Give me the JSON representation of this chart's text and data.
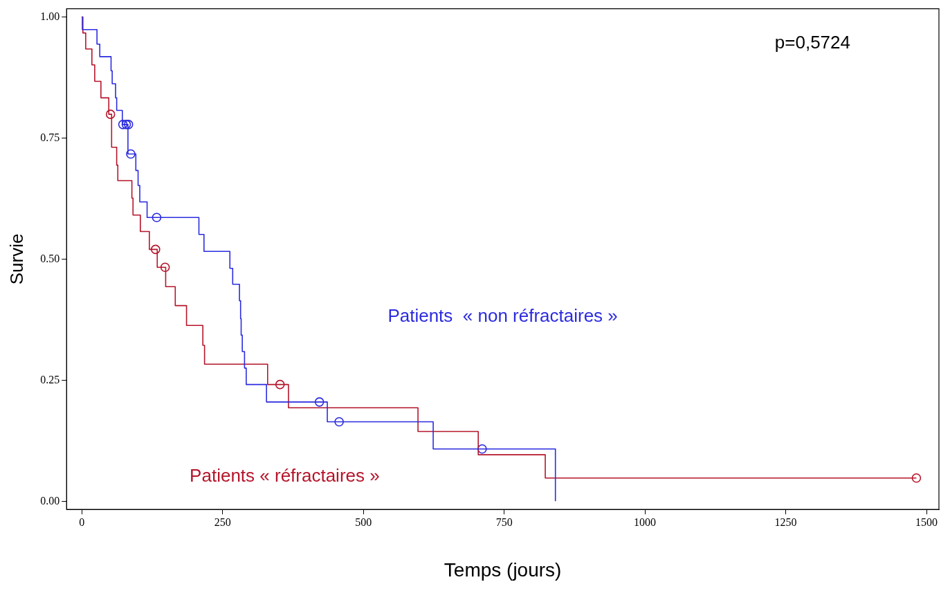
{
  "chart_data": {
    "type": "step",
    "xlabel": "Temps (jours)",
    "ylabel": "Survie",
    "annotations": [
      "p=0,5724"
    ],
    "xlim": [
      -27,
      1522
    ],
    "ylim": [
      -0.017,
      1.017
    ],
    "xticks": [
      0,
      250,
      500,
      750,
      1000,
      1250,
      1500
    ],
    "yticks": [
      {
        "value": 0,
        "label": "0.00"
      },
      {
        "value": 0.25,
        "label": "0.25"
      },
      {
        "value": 0.5,
        "label": "0.50"
      },
      {
        "value": 0.75,
        "label": "0.75"
      },
      {
        "value": 1,
        "label": "1.00"
      }
    ],
    "grid": false,
    "legend": false,
    "marker": "none",
    "line_style": "solid",
    "series": [
      {
        "name": "Patients  « non réfractaires »",
        "color": "#2b2bdf",
        "x": [
          0,
          1,
          27,
          32,
          52,
          54,
          60,
          62,
          72,
          82,
          96,
          100,
          103,
          116,
          208,
          217,
          263,
          268,
          280,
          282,
          283,
          285,
          289,
          292,
          328,
          436,
          624,
          841
        ],
        "values": [
          1,
          0.974,
          0.944,
          0.918,
          0.889,
          0.862,
          0.833,
          0.807,
          0.778,
          0.717,
          0.683,
          0.652,
          0.618,
          0.586,
          0.551,
          0.516,
          0.481,
          0.448,
          0.414,
          0.377,
          0.343,
          0.309,
          0.275,
          0.241,
          0.205,
          0.164,
          0.108,
          0
        ]
      },
      {
        "name": "Patients « réfractaires »",
        "color": "#b5142a",
        "x": [
          0,
          2,
          7,
          18,
          23,
          34,
          48,
          53,
          62,
          64,
          89,
          91,
          104,
          120,
          134,
          149,
          166,
          186,
          215,
          218,
          330,
          367,
          597,
          704,
          823,
          1482
        ],
        "values": [
          1,
          0.967,
          0.934,
          0.901,
          0.867,
          0.833,
          0.799,
          0.731,
          0.694,
          0.662,
          0.626,
          0.591,
          0.557,
          0.52,
          0.483,
          0.443,
          0.404,
          0.363,
          0.322,
          0.283,
          0.241,
          0.193,
          0.144,
          0.096,
          0.048,
          0.048
        ]
      },
      {
        "type": "scatter",
        "marker": "circle",
        "color": "#2b2bdf",
        "x": [
          73,
          79,
          83,
          87,
          133,
          422,
          457,
          711
        ],
        "values": [
          0.778,
          0.778,
          0.778,
          0.717,
          0.586,
          0.205,
          0.164,
          0.108
        ]
      },
      {
        "type": "scatter",
        "marker": "circle",
        "color": "#b5142a",
        "x": [
          51,
          131,
          148,
          352,
          1482
        ],
        "values": [
          0.799,
          0.52,
          0.483,
          0.241,
          0.048
        ]
      }
    ]
  }
}
